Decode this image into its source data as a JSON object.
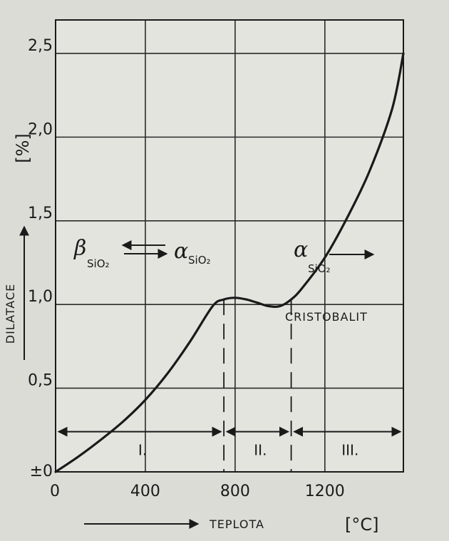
{
  "chart_data": {
    "type": "line",
    "xlabel": "TEPLOTA",
    "x_unit": "[°C]",
    "ylabel": "DILATACE",
    "y_unit": "[%]",
    "xlim": [
      0,
      1550
    ],
    "ylim": [
      0,
      2.7
    ],
    "x_ticks": [
      0,
      400,
      800,
      1200
    ],
    "x_tick_labels": [
      "0",
      "400",
      "800",
      "1200"
    ],
    "y_ticks": [
      0,
      0.5,
      1.0,
      1.5,
      2.0,
      2.5
    ],
    "y_tick_labels": [
      "±0",
      "0,5",
      "1,0",
      "1,5",
      "2,0",
      "2,5"
    ],
    "grid": true,
    "series": [
      {
        "x": [
          0,
          100,
          200,
          300,
          400,
          500,
          600,
          700,
          750,
          800,
          850,
          900,
          950,
          1000,
          1050,
          1100,
          1200,
          1300,
          1400,
          1500,
          1550
        ],
        "y": [
          0,
          0.09,
          0.19,
          0.3,
          0.43,
          0.59,
          0.78,
          0.99,
          1.03,
          1.04,
          1.03,
          1.01,
          0.99,
          0.99,
          1.03,
          1.1,
          1.28,
          1.52,
          1.8,
          2.17,
          2.5
        ]
      }
    ],
    "vertical_dashed_lines": [
      750,
      1050
    ],
    "regions": [
      {
        "label": "I.",
        "from": 0,
        "to": 750
      },
      {
        "label": "II.",
        "from": 750,
        "to": 1050
      },
      {
        "label": "III.",
        "from": 1050,
        "to": 1550
      }
    ],
    "annotations": {
      "beta_symbol": "β",
      "beta_sub": "SiO₂",
      "equilibrium_arrows": "⇄",
      "alpha_symbol": "α",
      "alpha_sub": "SiO₂",
      "alpha2_symbol": "α",
      "alpha2_sub": "SiO₂",
      "cristobalit": "CRISTOBALIT"
    }
  }
}
